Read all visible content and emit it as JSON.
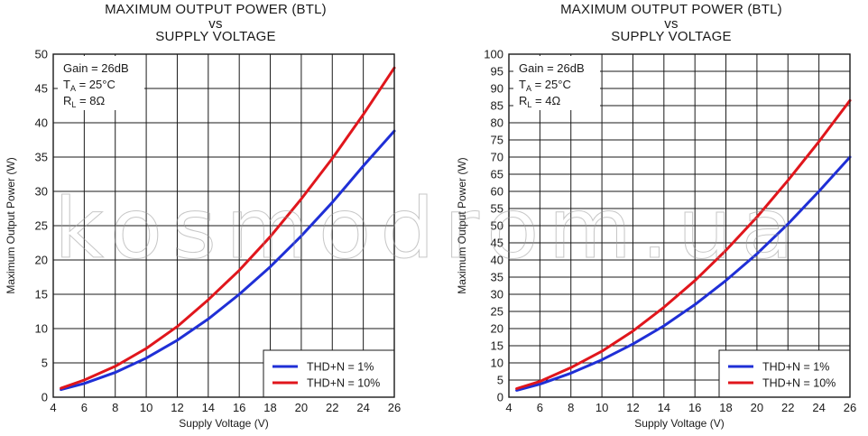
{
  "watermark": "kosmodrom.ua",
  "chart_data": [
    {
      "type": "line",
      "title_lines": [
        "MAXIMUM OUTPUT POWER (BTL)",
        "vs",
        "SUPPLY VOLTAGE"
      ],
      "xlabel": "Supply Voltage (V)",
      "ylabel": "Maximum Output Power (W)",
      "xlim": [
        4,
        26
      ],
      "ylim": [
        0,
        50
      ],
      "xticks": [
        4,
        6,
        8,
        10,
        12,
        14,
        16,
        18,
        20,
        22,
        24,
        26
      ],
      "yticks": [
        0,
        5,
        10,
        15,
        20,
        25,
        30,
        35,
        40,
        45,
        50
      ],
      "grid": true,
      "annotation": {
        "gain": "Gain = 26dB",
        "ta_label": "T",
        "ta_sub": "A",
        "ta_value": " = 25°C",
        "rl_label": "R",
        "rl_sub": "L",
        "rl_value": " = 8Ω"
      },
      "legend_position": "bottom-right",
      "x": [
        4.5,
        6,
        8,
        10,
        12,
        14,
        16,
        18,
        20,
        22,
        24,
        26
      ],
      "series": [
        {
          "name": "THD+N = 1%",
          "color": "#1f2fd6",
          "values": [
            1.1,
            2.0,
            3.6,
            5.7,
            8.3,
            11.4,
            15.0,
            19.0,
            23.5,
            28.4,
            33.7,
            38.8
          ]
        },
        {
          "name": "THD+N = 10%",
          "color": "#e0161c",
          "values": [
            1.3,
            2.5,
            4.5,
            7.1,
            10.3,
            14.2,
            18.5,
            23.4,
            28.9,
            34.8,
            41.2,
            48.0
          ]
        }
      ]
    },
    {
      "type": "line",
      "title_lines": [
        "MAXIMUM OUTPUT POWER (BTL)",
        "vs",
        "SUPPLY VOLTAGE"
      ],
      "xlabel": "Supply Voltage (V)",
      "ylabel": "Maximum Output Power (W)",
      "xlim": [
        4,
        26
      ],
      "ylim": [
        0,
        100
      ],
      "xticks": [
        4,
        6,
        8,
        10,
        12,
        14,
        16,
        18,
        20,
        22,
        24,
        26
      ],
      "yticks": [
        0,
        5,
        10,
        15,
        20,
        25,
        30,
        35,
        40,
        45,
        50,
        55,
        60,
        65,
        70,
        75,
        80,
        85,
        90,
        95,
        100
      ],
      "grid": true,
      "annotation": {
        "gain": "Gain = 26dB",
        "ta_label": "T",
        "ta_sub": "A",
        "ta_value": " = 25°C",
        "rl_label": "R",
        "rl_sub": "L",
        "rl_value": " = 4Ω"
      },
      "legend_position": "bottom-right",
      "x": [
        4.5,
        6,
        8,
        10,
        12,
        14,
        16,
        18,
        20,
        22,
        24,
        26
      ],
      "series": [
        {
          "name": "THD+N = 1%",
          "color": "#1f2fd6",
          "values": [
            2.0,
            3.8,
            7.0,
            10.9,
            15.5,
            20.8,
            27.0,
            34.0,
            41.8,
            50.5,
            60.0,
            70.0
          ]
        },
        {
          "name": "THD+N = 10%",
          "color": "#e0161c",
          "values": [
            2.5,
            4.6,
            8.6,
            13.4,
            19.3,
            26.2,
            34.0,
            42.8,
            52.5,
            63.2,
            74.5,
            86.5
          ]
        }
      ]
    }
  ]
}
